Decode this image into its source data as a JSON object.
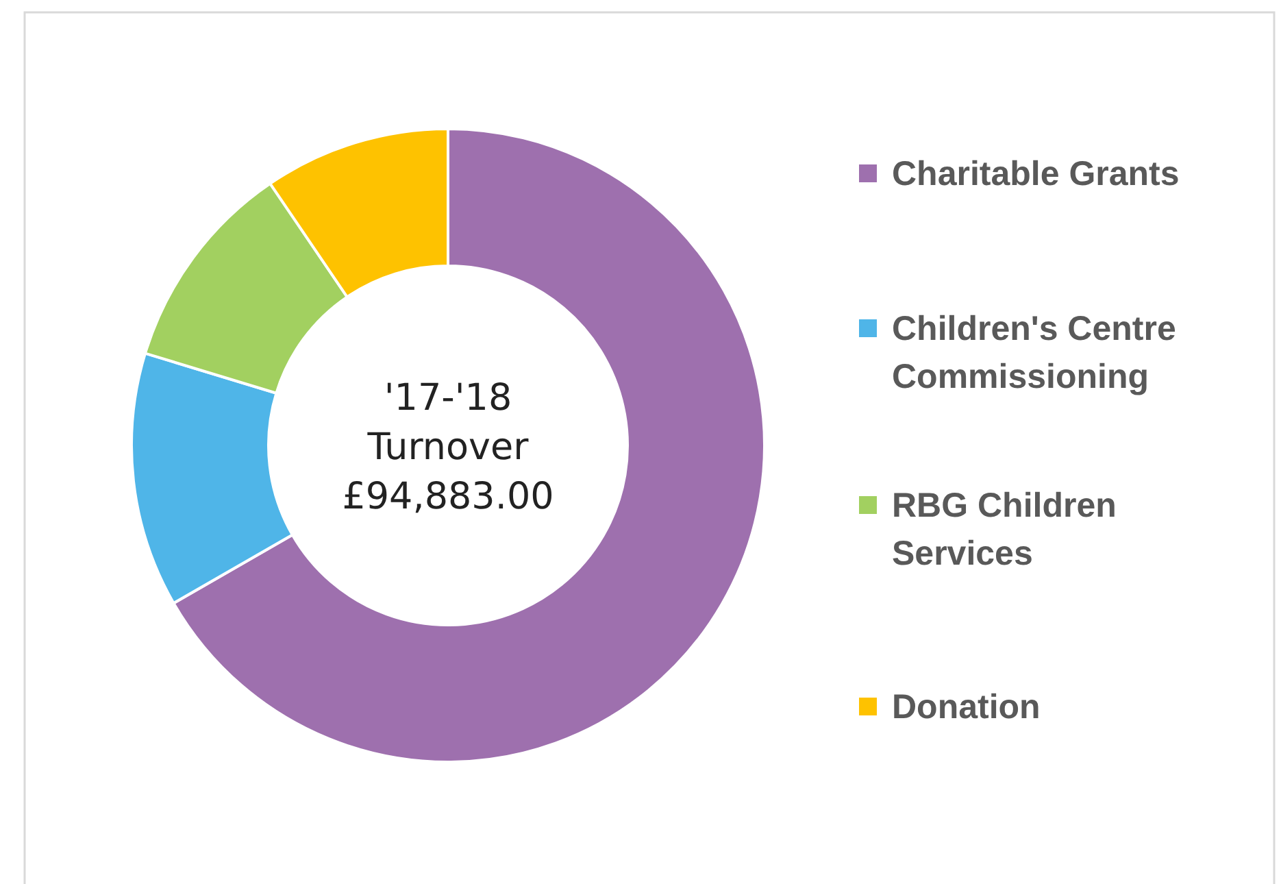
{
  "chart_data": {
    "type": "donut",
    "title": "'17-'18 Turnover £94,883.00",
    "categories": [
      "Charitable Grants",
      "Children's Centre Commissioning",
      "RBG Children Services",
      "Donation"
    ],
    "values": [
      66.7,
      13,
      10.8,
      9.5
    ],
    "colors": [
      "#9e70ae",
      "#4fb5e8",
      "#a2d060",
      "#fec200"
    ],
    "legend": "right"
  }
}
